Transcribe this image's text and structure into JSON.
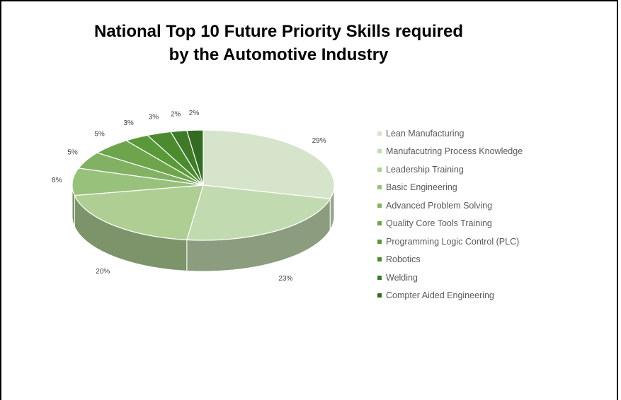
{
  "chart_data": {
    "type": "pie",
    "title": "National Top 10 Future Priority Skills required by the Automotive Industry",
    "title_lines": [
      "National Top 10 Future Priority Skills required",
      "by the Automotive Industry"
    ],
    "legend_position": "right",
    "style": "3d",
    "series": [
      {
        "categories": [
          "Lean Manufacturing",
          "Manufacutring Process Knowledge",
          "Leadership Training",
          "Basic Engineering",
          "Advanced Problem Solving",
          "Quality Core Tools Training",
          "Programming Logic Control (PLC)",
          "Robotics",
          "Welding",
          "Compter Aided Engineering"
        ],
        "values": [
          29,
          23,
          20,
          8,
          5,
          5,
          3,
          3,
          2,
          2
        ],
        "labels": [
          "29%",
          "23%",
          "20%",
          "8%",
          "5%",
          "5%",
          "3%",
          "3%",
          "2%",
          "2%"
        ],
        "colors": [
          "#d6e4cb",
          "#c2dab0",
          "#aece94",
          "#98c17c",
          "#82b164",
          "#6ea54c",
          "#5a993a",
          "#4b8a2e",
          "#3e7a28",
          "#336b22"
        ]
      }
    ]
  }
}
